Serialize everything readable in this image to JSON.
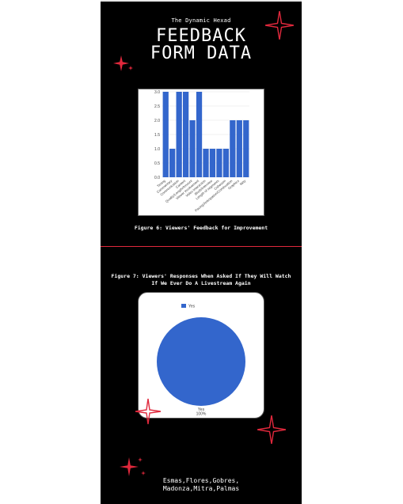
{
  "header": {
    "team_name": "The Dynamic Hexad",
    "title_line1": "FEEDBACK",
    "title_line2": "FORM DATA"
  },
  "figure6": {
    "caption": "Figure 6: Viewers' Feedback for Improvement"
  },
  "figure7": {
    "caption_line1": "Figure 7: Viewers' Responses When Asked If They Will Watch",
    "caption_line2": "If We Ever Do A Livestream Again"
  },
  "footer": {
    "authors_line1": "Esmas,Flores,Gobres,",
    "authors_line2": "Madonza,Mitra,Palmas"
  },
  "colors": {
    "accent": "#e0283c",
    "bar": "#3366cc",
    "background": "#000000"
  },
  "chart_data": [
    {
      "type": "bar",
      "categories": [
        "Timing",
        "Commentary",
        "Communication",
        "Content",
        "Quality/Length/Amount",
        "Viewer Involvement",
        "Video Interaction",
        "Blurb/Interview",
        "Length of segments",
        "Cohesion",
        "Pacing/Anticipation/Continuation",
        "Graphics",
        "Nitty"
      ],
      "values": [
        3,
        1,
        3,
        3,
        2,
        3,
        1,
        1,
        1,
        1,
        2,
        2,
        2
      ],
      "ylim": [
        0,
        3
      ],
      "yticks": [
        "0.0",
        "0.5",
        "1.0",
        "1.5",
        "2.0",
        "2.5",
        "3.0"
      ],
      "grid": true
    },
    {
      "type": "pie",
      "categories": [
        "Yes"
      ],
      "values": [
        100
      ],
      "legend": [
        "Yes"
      ],
      "slice_label": "Yes",
      "slice_percent": "100%",
      "legend_position": "top"
    }
  ]
}
